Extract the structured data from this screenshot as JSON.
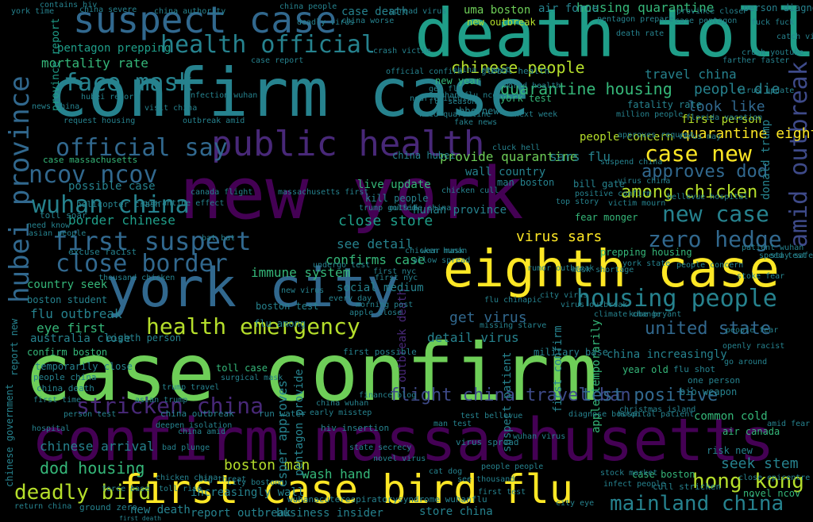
{
  "palette": {
    "background": "#000000",
    "c1": "#440154",
    "c2": "#482878",
    "c3": "#3e4a89",
    "c4": "#31688e",
    "c5": "#26828e",
    "c6": "#1f9e89",
    "c7": "#35b779",
    "c8": "#6ece58",
    "c9": "#b5de2b",
    "c10": "#fde725"
  },
  "words": {
    "w001": "case confirm",
    "w002": "confirm case",
    "w003": "new york",
    "w004": "confirm massachusetts",
    "w005": "death toll",
    "w006": "suspect case",
    "w007": "eighth case",
    "w008": "york city",
    "w009": "first case bird flu",
    "w010": "public health",
    "w011": "hubei province",
    "w012": "health official",
    "w013": "face mask",
    "w014": "first suspect",
    "w015": "official say",
    "w016": "housing people",
    "w017": "health emergency",
    "w018": "ncov ncov",
    "w019": "wuhan china",
    "w020": "close border",
    "w021": "stricken china",
    "w022": "amid outbreak",
    "w023": "zero hedge",
    "w024": "new case",
    "w025": "case new",
    "w026": "quarantine housing",
    "w027": "chinese people",
    "w028": "hong kong",
    "w029": "mainland china",
    "w030": "deadly bird",
    "w031": "flight china travel ban",
    "w032": "test positive",
    "w033": "among chicken",
    "w034": "united state",
    "w035": "approves dod",
    "w036": "quarantine eighth",
    "w037": "people die",
    "w038": "look like",
    "w039": "boston man",
    "w040": "dod housing",
    "w041": "first person",
    "w042": "people concern",
    "w043": "travel china",
    "w044": "see detail",
    "w045": "immune system",
    "w046": "get virus",
    "w047": "detail virus",
    "w048": "virus sars",
    "w049": "confirms case",
    "w050": "close store",
    "w051": "possible case",
    "w052": "border chinese",
    "w053": "flu outbreak",
    "w054": "eye first",
    "w055": "australia close",
    "w056": "country seek",
    "w057": "mortality rate",
    "w058": "pentagon prepping",
    "w059": "housing quarantine",
    "w060": "uma boston",
    "w061": "case death",
    "w062": "new outbreak",
    "w063": "chinese arrival",
    "w064": "wash hand",
    "w065": "increasingly wall",
    "w066": "seek stem",
    "w067": "esper approves",
    "w068": "pentagon provide",
    "w069": "outbreak death",
    "w070": "report outbreak",
    "w071": "business insider",
    "w072": "new death",
    "w073": "store china",
    "w074": "province report",
    "w075": "provide quarantine",
    "w076": "wall country",
    "w077": "sars flu",
    "w078": "china hubei",
    "w079": "live update",
    "w080": "hunan province",
    "w081": "social medium",
    "w082": "kill people",
    "w083": "china increasingly",
    "w084": "apple temporarily",
    "w085": "first confirm",
    "w086": "suspect patient",
    "w087": "common cold",
    "w088": "donald trump",
    "w089": "bill gate",
    "w090": "fear monger",
    "w091": "military base",
    "w092": "prepping housing",
    "w093": "boston test",
    "w094": "flu among",
    "w095": "case boston",
    "w096": "risk new",
    "w097": "cull stricken",
    "w098": "novel ncov",
    "w099": "boston student",
    "w100": "confirm boston",
    "w101": "temporarily close",
    "w102": "people china",
    "w103": "chinese government",
    "w104": "report new",
    "w105": "china outbreak",
    "w106": "toll case",
    "w107": "surgical mask",
    "w108": "run water",
    "w109": "deepen isolation",
    "w110": "hiv insertion",
    "w111": "virus spread",
    "w112": "china death",
    "w113": "eighth person",
    "w114": "first possible",
    "w115": "year old",
    "w116": "flu shot",
    "w117": "bio weapon",
    "w118": "one person",
    "w119": "fatality rate",
    "w120": "chicken cull",
    "w121": "helicopter crash",
    "w122": "quarantine effect",
    "w123": "case massachusetts",
    "w124": "massachusetts first",
    "w125": "approves request",
    "w126": "new year",
    "w127": "global health",
    "w128": "york test",
    "w129": "bbc news",
    "w130": "fake news",
    "w131": "next week",
    "w132": "million people",
    "w133": "florida vacation",
    "w134": "virus update",
    "w135": "world health",
    "w136": "china report",
    "w137": "crash victim",
    "w138": "official confirm",
    "w139": "air force",
    "w140": "person diagnose",
    "w141": "death rate",
    "w142": "catch virus",
    "w143": "crush youtube",
    "w144": "farther faster",
    "w145": "china worse",
    "w146": "case pentagon",
    "w147": "pentagon prepare",
    "w148": "province close",
    "w149": "cluck hell",
    "w150": "near epicentre",
    "w151": "wuhan flu ncov",
    "w152": "close epicentre",
    "w153": "air canada",
    "w154": "christmas island",
    "w155": "infect people",
    "w156": "stock market",
    "w157": "ground zero",
    "w158": "return china",
    "w159": "first time",
    "w160": "city eye",
    "w161": "big threat",
    "w162": "toll rise",
    "w163": "flu chinapic",
    "w164": "city virus",
    "w165": "virus outbreak",
    "w166": "missing starve",
    "w167": "every day",
    "w168": "morning post",
    "w169": "outside china",
    "w170": "top story",
    "w171": "victim mourn",
    "w172": "bellevue hospital",
    "w173": "wear mask",
    "w174": "allow spread",
    "w175": "chicken hunan",
    "w176": "first nyc",
    "w177": "thousand chicken",
    "w178": "virus china",
    "w179": "positive confirm",
    "w180": "trump golfed",
    "w181": "canada flight",
    "w182": "excuse racist",
    "w183": "toll soar",
    "w184": "need know",
    "w185": "asian people",
    "w186": "bat bat",
    "w187": "china severe",
    "w188": "deadly virus",
    "w189": "case report",
    "w190": "fuck fuck",
    "w191": "contains hiv",
    "w192": "york time",
    "w193": "china authority",
    "w194": "china people",
    "w195": "spread virus",
    "w196": "amid fear",
    "w197": "york state",
    "w198": "kobe bryant",
    "w199": "climate change",
    "w200": "openly racist",
    "w201": "go around",
    "w202": "people fear",
    "w203": "person test",
    "w204": "hospital",
    "w205": "trump travel",
    "w206": "asian trump",
    "w207": "wuhan virus",
    "w208": "china amid",
    "w209": "finance blog",
    "w210": "man test",
    "w211": "test bellevue",
    "w212": "wuhanacuterespiratorysyndrome wuhanflu",
    "w213": "see thousand",
    "w214": "people people",
    "w215": "state secrecy",
    "w216": "china wuhan",
    "w217": "early misstep",
    "w218": "cat dog",
    "w219": "first test",
    "w220": "bad plunge",
    "w221": "force base",
    "w222": "chicken china",
    "w223": "city boston",
    "w224": "speed test",
    "w225": "stoke fear",
    "w226": "stay safe",
    "w227": "patient wuhan",
    "w228": "rumor outbreak",
    "w229": "mask shortage",
    "w230": "first nyc",
    "w231": "novel virus",
    "w232": "hospital patient",
    "w233": "diagnose boston",
    "w234": "man boston",
    "w235": "undergo test",
    "w236": "new virus",
    "w237": "people concern",
    "w238": "apple close",
    "w239": "suspend china",
    "w240": "get flu",
    "w241": "flu season",
    "w242": "visit china",
    "w243": "news china",
    "w244": "virus may",
    "w245": "request housing",
    "w246": "hubei report",
    "w247": "outbreak amid",
    "w248": "infection wuhan",
    "w249": "need quarantine",
    "w250": "first death"
  }
}
